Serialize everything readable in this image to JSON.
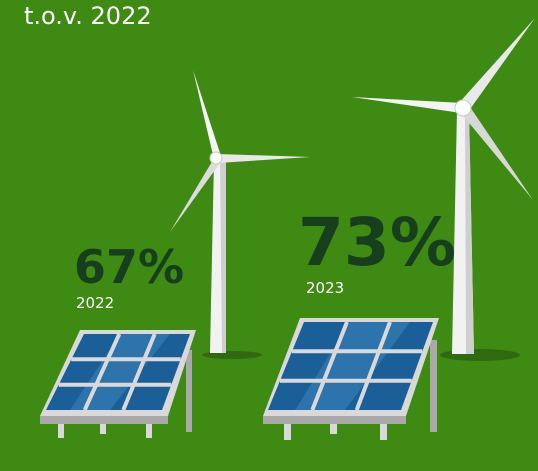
{
  "header": {
    "subtitle": "t.o.v. 2022"
  },
  "stats": [
    {
      "value": "67%",
      "year": "2022"
    },
    {
      "value": "73%",
      "year": "2023"
    }
  ]
}
